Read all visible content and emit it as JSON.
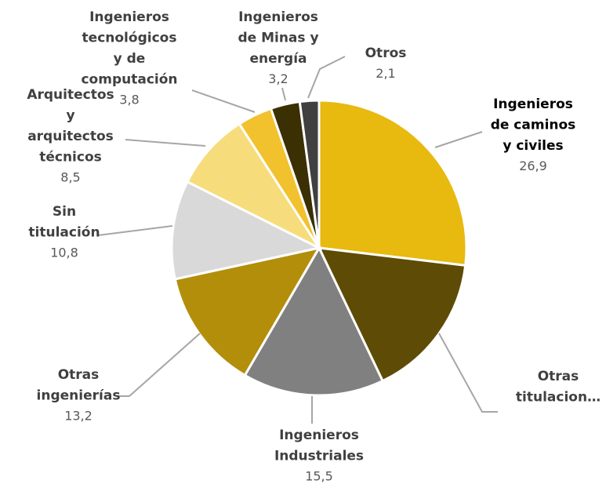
{
  "chart_data": {
    "type": "pie",
    "categories": [
      "Ingenieros de caminos y civiles",
      "Otras titulacion…",
      "Ingenieros Industriales",
      "Otras ingenierías",
      "Sin titulación",
      "Arquitectos y arquitectos técnicos",
      "Ingenieros tecnológicos y de computación",
      "Ingenieros de Minas y energía",
      "Otros"
    ],
    "values": [
      26.9,
      16.0,
      15.5,
      13.2,
      10.8,
      8.5,
      3.8,
      3.2,
      2.1
    ],
    "value_labels": [
      "26,9",
      null,
      "15,5",
      "13,2",
      "10,8",
      "8,5",
      "3,8",
      "3,2",
      "2,1"
    ],
    "colors": [
      "#E8B90F",
      "#5E4C06",
      "#808080",
      "#B38E0B",
      "#D9D9D9",
      "#F7DC7C",
      "#F2C12E",
      "#3B2F04",
      "#404040"
    ]
  }
}
